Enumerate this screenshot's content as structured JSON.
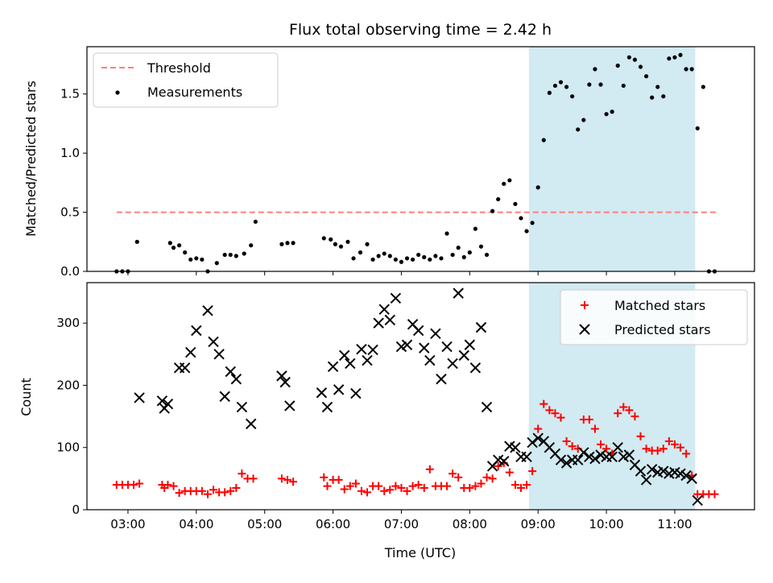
{
  "chart_data": [
    {
      "type": "scatter",
      "title": "Flux total observing time = 2.42 h",
      "xlabel": "",
      "ylabel": "Matched/Predicted stars",
      "xlim": [
        "02:24",
        "12:10"
      ],
      "ylim": [
        0,
        1.9
      ],
      "yticks": [
        "0.0",
        "0.5",
        "1.0",
        "1.5"
      ],
      "xticks": [
        "03:00",
        "04:00",
        "05:00",
        "06:00",
        "07:00",
        "08:00",
        "09:00",
        "10:00",
        "11:00"
      ],
      "legend_position": "top-left",
      "grid": false,
      "shaded_interval": {
        "start": "08:52",
        "end": "11:18",
        "color": "#add8e6"
      },
      "series": [
        {
          "name": "Threshold",
          "style": "dashed-line",
          "color": "#ff7f7f",
          "x": [
            "02:50",
            "11:37"
          ],
          "y": [
            0.5,
            0.5
          ]
        },
        {
          "name": "Measurements",
          "style": "dot",
          "color": "#000000",
          "x": [
            "02:50",
            "02:55",
            "03:00",
            "03:08",
            "03:37",
            "03:40",
            "03:45",
            "03:50",
            "03:55",
            "04:00",
            "04:05",
            "04:10",
            "04:18",
            "04:25",
            "04:30",
            "04:35",
            "04:42",
            "04:48",
            "04:52",
            "05:15",
            "05:20",
            "05:25",
            "05:52",
            "05:58",
            "06:02",
            "06:07",
            "06:13",
            "06:18",
            "06:24",
            "06:30",
            "06:35",
            "06:40",
            "06:45",
            "06:50",
            "06:55",
            "07:00",
            "07:05",
            "07:10",
            "07:15",
            "07:20",
            "07:25",
            "07:30",
            "07:35",
            "07:40",
            "07:45",
            "07:50",
            "07:55",
            "08:00",
            "08:05",
            "08:10",
            "08:15",
            "08:20",
            "08:25",
            "08:30",
            "08:35",
            "08:40",
            "08:45",
            "08:50",
            "08:55",
            "09:00",
            "09:05",
            "09:10",
            "09:15",
            "09:20",
            "09:25",
            "09:30",
            "09:35",
            "09:40",
            "09:45",
            "09:50",
            "09:55",
            "10:00",
            "10:05",
            "10:10",
            "10:15",
            "10:20",
            "10:25",
            "10:30",
            "10:35",
            "10:40",
            "10:45",
            "10:50",
            "10:55",
            "11:00",
            "11:05",
            "11:10",
            "11:15",
            "11:20",
            "11:25",
            "11:30",
            "11:35"
          ],
          "y": [
            0.0,
            0.0,
            0.0,
            0.25,
            0.24,
            0.2,
            0.22,
            0.16,
            0.1,
            0.11,
            0.1,
            0.0,
            0.07,
            0.14,
            0.14,
            0.13,
            0.15,
            0.22,
            0.42,
            0.23,
            0.24,
            0.24,
            0.28,
            0.27,
            0.23,
            0.21,
            0.25,
            0.11,
            0.16,
            0.23,
            0.1,
            0.13,
            0.15,
            0.13,
            0.1,
            0.08,
            0.11,
            0.1,
            0.14,
            0.12,
            0.1,
            0.13,
            0.11,
            0.32,
            0.14,
            0.2,
            0.12,
            0.16,
            0.36,
            0.21,
            0.14,
            0.51,
            0.61,
            0.74,
            0.77,
            0.57,
            0.45,
            0.34,
            0.41,
            0.71,
            1.11,
            1.51,
            1.57,
            1.6,
            1.56,
            1.48,
            1.2,
            1.28,
            1.58,
            1.71,
            1.58,
            1.33,
            1.35,
            1.74,
            1.57,
            1.81,
            1.79,
            1.73,
            1.65,
            1.47,
            1.56,
            1.48,
            1.8,
            1.81,
            1.83,
            1.71,
            1.71,
            1.21,
            1.56,
            0.0,
            0.0
          ]
        }
      ]
    },
    {
      "type": "scatter",
      "title": "",
      "xlabel": "Time (UTC)",
      "ylabel": "Count",
      "xlim": [
        "02:24",
        "12:10"
      ],
      "ylim": [
        0,
        365
      ],
      "yticks": [
        "0",
        "100",
        "200",
        "300"
      ],
      "xticks": [
        "03:00",
        "04:00",
        "05:00",
        "06:00",
        "07:00",
        "08:00",
        "09:00",
        "10:00",
        "11:00"
      ],
      "legend_position": "top-right",
      "grid": false,
      "shaded_interval": {
        "start": "08:52",
        "end": "11:18",
        "color": "#add8e6"
      },
      "series": [
        {
          "name": "Matched stars",
          "style": "plus",
          "color": "#ff0000",
          "x": [
            "02:50",
            "02:55",
            "03:00",
            "03:05",
            "03:10",
            "03:30",
            "03:32",
            "03:35",
            "03:40",
            "03:45",
            "03:50",
            "03:55",
            "04:00",
            "04:05",
            "04:10",
            "04:15",
            "04:20",
            "04:25",
            "04:30",
            "04:35",
            "04:40",
            "04:45",
            "04:50",
            "05:15",
            "05:20",
            "05:25",
            "05:52",
            "05:55",
            "06:00",
            "06:05",
            "06:10",
            "06:15",
            "06:20",
            "06:25",
            "06:30",
            "06:35",
            "06:40",
            "06:45",
            "06:50",
            "06:55",
            "07:00",
            "07:05",
            "07:10",
            "07:15",
            "07:20",
            "07:25",
            "07:30",
            "07:35",
            "07:40",
            "07:45",
            "07:50",
            "07:55",
            "08:00",
            "08:05",
            "08:10",
            "08:15",
            "08:20",
            "08:25",
            "08:30",
            "08:35",
            "08:40",
            "08:45",
            "08:50",
            "08:55",
            "09:00",
            "09:05",
            "09:10",
            "09:15",
            "09:20",
            "09:25",
            "09:30",
            "09:35",
            "09:40",
            "09:45",
            "09:50",
            "09:55",
            "10:00",
            "10:05",
            "10:10",
            "10:15",
            "10:20",
            "10:25",
            "10:30",
            "10:35",
            "10:40",
            "10:45",
            "10:50",
            "10:55",
            "11:00",
            "11:05",
            "11:10",
            "11:15",
            "11:20",
            "11:25",
            "11:30",
            "11:35"
          ],
          "y": [
            40,
            40,
            40,
            40,
            42,
            40,
            35,
            40,
            38,
            27,
            30,
            30,
            30,
            30,
            25,
            32,
            28,
            28,
            30,
            35,
            58,
            50,
            50,
            50,
            48,
            45,
            52,
            38,
            48,
            48,
            33,
            38,
            42,
            30,
            28,
            38,
            38,
            30,
            32,
            38,
            35,
            30,
            38,
            40,
            35,
            65,
            38,
            38,
            38,
            58,
            52,
            35,
            35,
            38,
            42,
            52,
            50,
            70,
            75,
            60,
            40,
            35,
            40,
            62,
            130,
            170,
            160,
            155,
            148,
            110,
            102,
            98,
            145,
            145,
            130,
            105,
            98,
            90,
            155,
            165,
            160,
            150,
            118,
            98,
            95,
            95,
            98,
            110,
            105,
            100,
            90,
            55,
            25,
            25,
            25,
            25
          ]
        },
        {
          "name": "Predicted stars",
          "style": "x",
          "color": "#000000",
          "x": [
            "03:10",
            "03:30",
            "03:32",
            "03:35",
            "03:45",
            "03:50",
            "03:55",
            "04:00",
            "04:10",
            "04:15",
            "04:20",
            "04:25",
            "04:30",
            "04:35",
            "04:40",
            "04:48",
            "05:15",
            "05:18",
            "05:22",
            "05:50",
            "05:55",
            "06:00",
            "06:05",
            "06:10",
            "06:15",
            "06:20",
            "06:25",
            "06:30",
            "06:35",
            "06:40",
            "06:45",
            "06:50",
            "06:55",
            "07:00",
            "07:05",
            "07:10",
            "07:15",
            "07:20",
            "07:25",
            "07:30",
            "07:35",
            "07:40",
            "07:45",
            "07:50",
            "07:55",
            "08:00",
            "08:05",
            "08:10",
            "08:15",
            "08:20",
            "08:25",
            "08:30",
            "08:35",
            "08:40",
            "08:45",
            "08:50",
            "08:55",
            "09:00",
            "09:05",
            "09:10",
            "09:15",
            "09:20",
            "09:25",
            "09:30",
            "09:35",
            "09:40",
            "09:45",
            "09:50",
            "09:55",
            "10:00",
            "10:05",
            "10:10",
            "10:15",
            "10:20",
            "10:25",
            "10:30",
            "10:35",
            "10:40",
            "10:45",
            "10:50",
            "10:55",
            "11:00",
            "11:05",
            "11:10",
            "11:15",
            "11:20"
          ],
          "y": [
            180,
            175,
            163,
            170,
            228,
            228,
            253,
            288,
            320,
            270,
            250,
            182,
            222,
            210,
            165,
            138,
            215,
            205,
            167,
            188,
            165,
            230,
            193,
            248,
            235,
            187,
            258,
            240,
            257,
            300,
            322,
            305,
            340,
            262,
            265,
            298,
            288,
            260,
            240,
            283,
            210,
            262,
            235,
            348,
            248,
            265,
            228,
            293,
            165,
            70,
            80,
            78,
            102,
            100,
            85,
            85,
            108,
            115,
            110,
            100,
            90,
            80,
            75,
            80,
            80,
            92,
            85,
            82,
            88,
            85,
            85,
            100,
            85,
            88,
            72,
            62,
            48,
            65,
            60,
            62,
            58,
            60,
            58,
            55,
            50,
            15
          ]
        }
      ]
    }
  ]
}
